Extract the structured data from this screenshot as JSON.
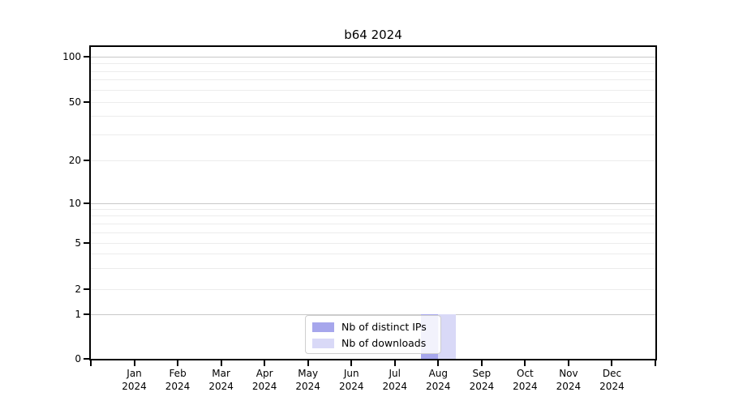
{
  "chart_data": {
    "type": "bar",
    "title": "b64 2024",
    "year": "2024",
    "months": [
      "Jan",
      "Feb",
      "Mar",
      "Apr",
      "May",
      "Jun",
      "Jul",
      "Aug",
      "Sep",
      "Oct",
      "Nov",
      "Dec"
    ],
    "categories": [
      "Jan 2024",
      "Feb 2024",
      "Mar 2024",
      "Apr 2024",
      "May 2024",
      "Jun 2024",
      "Jul 2024",
      "Aug 2024",
      "Sep 2024",
      "Oct 2024",
      "Nov 2024",
      "Dec 2024"
    ],
    "series": [
      {
        "name": "Nb of distinct IPs",
        "color": "#a6a6ec",
        "values": [
          0,
          0,
          0,
          0,
          0,
          0,
          0,
          1,
          0,
          0,
          0,
          0
        ]
      },
      {
        "name": "Nb of downloads",
        "color": "#d9d9f7",
        "values": [
          0,
          0,
          0,
          0,
          0,
          0,
          0,
          1,
          0,
          0,
          0,
          0
        ]
      }
    ],
    "y_ticks": [
      0,
      1,
      2,
      5,
      10,
      20,
      50,
      100
    ],
    "ylim": [
      0,
      100
    ],
    "yscale": "log-like with linear segment below 1",
    "grid": true,
    "grid_major_color": "#c8c8c8",
    "grid_minor_color": "#ececec",
    "legend_position": "bottom-center inside plot",
    "xlabel": "",
    "ylabel": ""
  }
}
